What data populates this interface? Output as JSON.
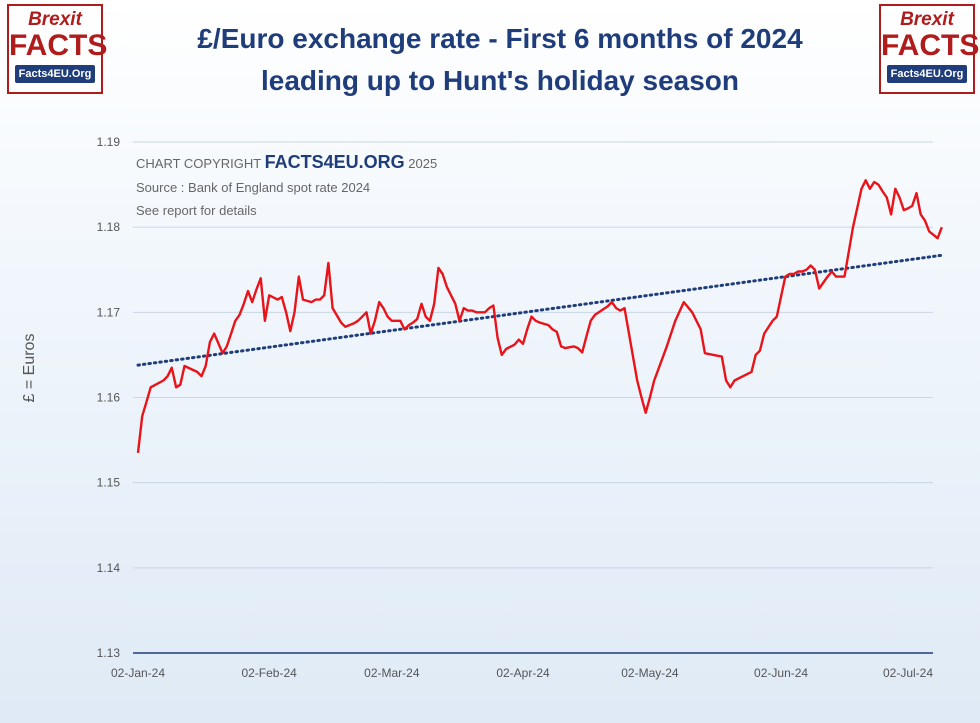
{
  "logos": {
    "line1": "Brexit",
    "line2": "FACTS",
    "line3": "Facts4EU.Org"
  },
  "title_line1": "£/Euro exchange rate - First 6 months of 2024",
  "title_line2": "leading up to Hunt's holiday season",
  "notes": {
    "copyright_prefix": "CHART COPYRIGHT",
    "copyright_org": "FACTS4EU.ORG",
    "copyright_year": "2025",
    "source": "Source : Bank of England spot rate 2024",
    "details": "See report for details"
  },
  "colors": {
    "title": "#1f3d7a",
    "series": "#e8141a",
    "trend": "#1f3d7a",
    "logo": "#b01c1c"
  },
  "chart_data": {
    "type": "line",
    "ylabel": "£ = Euros",
    "ylim": [
      1.13,
      1.19
    ],
    "yticks": [
      "1.13",
      "1.14",
      "1.15",
      "1.16",
      "1.17",
      "1.18",
      "1.19"
    ],
    "xticks": [
      "02-Jan-24",
      "02-Feb-24",
      "02-Mar-24",
      "02-Apr-24",
      "02-May-24",
      "02-Jun-24",
      "02-Jul-24"
    ],
    "xlim": [
      "2024-01-02",
      "2024-07-02"
    ],
    "grid": true,
    "series": [
      {
        "style": "solid",
        "points": [
          [
            "2024-01-02",
            1.1535
          ],
          [
            "2024-01-03",
            1.1578
          ],
          [
            "2024-01-04",
            1.1595
          ],
          [
            "2024-01-05",
            1.1612
          ],
          [
            "2024-01-08",
            1.162
          ],
          [
            "2024-01-09",
            1.1625
          ],
          [
            "2024-01-10",
            1.1635
          ],
          [
            "2024-01-11",
            1.1612
          ],
          [
            "2024-01-12",
            1.1615
          ],
          [
            "2024-01-13",
            1.1637
          ],
          [
            "2024-01-16",
            1.163
          ],
          [
            "2024-01-17",
            1.1625
          ],
          [
            "2024-01-18",
            1.1637
          ],
          [
            "2024-01-19",
            1.1665
          ],
          [
            "2024-01-20",
            1.1675
          ],
          [
            "2024-01-22",
            1.1652
          ],
          [
            "2024-01-23",
            1.166
          ],
          [
            "2024-01-24",
            1.1675
          ],
          [
            "2024-01-25",
            1.169
          ],
          [
            "2024-01-26",
            1.1697
          ],
          [
            "2024-01-27",
            1.171
          ],
          [
            "2024-01-28",
            1.1725
          ],
          [
            "2024-01-29",
            1.1712
          ],
          [
            "2024-01-30",
            1.1727
          ],
          [
            "2024-01-31",
            1.174
          ],
          [
            "2024-02-01",
            1.169
          ],
          [
            "2024-02-02",
            1.172
          ],
          [
            "2024-02-04",
            1.1715
          ],
          [
            "2024-02-05",
            1.1718
          ],
          [
            "2024-02-06",
            1.17
          ],
          [
            "2024-02-07",
            1.1678
          ],
          [
            "2024-02-08",
            1.17
          ],
          [
            "2024-02-09",
            1.1742
          ],
          [
            "2024-02-10",
            1.1715
          ],
          [
            "2024-02-12",
            1.1712
          ],
          [
            "2024-02-13",
            1.1715
          ],
          [
            "2024-02-14",
            1.1715
          ],
          [
            "2024-02-15",
            1.172
          ],
          [
            "2024-02-16",
            1.1758
          ],
          [
            "2024-02-17",
            1.1705
          ],
          [
            "2024-02-19",
            1.1688
          ],
          [
            "2024-02-20",
            1.1683
          ],
          [
            "2024-02-22",
            1.1687
          ],
          [
            "2024-02-23",
            1.169
          ],
          [
            "2024-02-25",
            1.17
          ],
          [
            "2024-02-26",
            1.1675
          ],
          [
            "2024-02-27",
            1.169
          ],
          [
            "2024-02-28",
            1.1712
          ],
          [
            "2024-02-29",
            1.1705
          ],
          [
            "2024-03-01",
            1.1695
          ],
          [
            "2024-03-02",
            1.169
          ],
          [
            "2024-03-04",
            1.169
          ],
          [
            "2024-03-05",
            1.168
          ],
          [
            "2024-03-06",
            1.1685
          ],
          [
            "2024-03-07",
            1.1688
          ],
          [
            "2024-03-08",
            1.1692
          ],
          [
            "2024-03-09",
            1.171
          ],
          [
            "2024-03-10",
            1.1695
          ],
          [
            "2024-03-11",
            1.169
          ],
          [
            "2024-03-12",
            1.171
          ],
          [
            "2024-03-13",
            1.1752
          ],
          [
            "2024-03-14",
            1.1745
          ],
          [
            "2024-03-15",
            1.173
          ],
          [
            "2024-03-17",
            1.171
          ],
          [
            "2024-03-18",
            1.169
          ],
          [
            "2024-03-19",
            1.1705
          ],
          [
            "2024-03-20",
            1.1702
          ],
          [
            "2024-03-21",
            1.1702
          ],
          [
            "2024-03-22",
            1.17
          ],
          [
            "2024-03-24",
            1.17
          ],
          [
            "2024-03-25",
            1.1705
          ],
          [
            "2024-03-26",
            1.1708
          ],
          [
            "2024-03-27",
            1.167
          ],
          [
            "2024-03-28",
            1.165
          ],
          [
            "2024-03-29",
            1.1657
          ],
          [
            "2024-03-31",
            1.1662
          ],
          [
            "2024-04-01",
            1.1668
          ],
          [
            "2024-04-02",
            1.1663
          ],
          [
            "2024-04-03",
            1.168
          ],
          [
            "2024-04-04",
            1.1695
          ],
          [
            "2024-04-05",
            1.169
          ],
          [
            "2024-04-06",
            1.1688
          ],
          [
            "2024-04-08",
            1.1685
          ],
          [
            "2024-04-09",
            1.168
          ],
          [
            "2024-04-10",
            1.1677
          ],
          [
            "2024-04-11",
            1.166
          ],
          [
            "2024-04-12",
            1.1658
          ],
          [
            "2024-04-14",
            1.166
          ],
          [
            "2024-04-15",
            1.1658
          ],
          [
            "2024-04-16",
            1.1653
          ],
          [
            "2024-04-17",
            1.1672
          ],
          [
            "2024-04-18",
            1.169
          ],
          [
            "2024-04-19",
            1.1697
          ],
          [
            "2024-04-22",
            1.1707
          ],
          [
            "2024-04-23",
            1.1712
          ],
          [
            "2024-04-24",
            1.1705
          ],
          [
            "2024-04-25",
            1.1702
          ],
          [
            "2024-04-26",
            1.1705
          ],
          [
            "2024-04-29",
            1.162
          ],
          [
            "2024-04-30",
            1.16
          ],
          [
            "2024-05-01",
            1.1582
          ],
          [
            "2024-05-02",
            1.16
          ],
          [
            "2024-05-03",
            1.162
          ],
          [
            "2024-05-06",
            1.166
          ],
          [
            "2024-05-08",
            1.169
          ],
          [
            "2024-05-10",
            1.1712
          ],
          [
            "2024-05-12",
            1.17
          ],
          [
            "2024-05-14",
            1.168
          ],
          [
            "2024-05-15",
            1.1652
          ],
          [
            "2024-05-17",
            1.165
          ],
          [
            "2024-05-19",
            1.1648
          ],
          [
            "2024-05-20",
            1.162
          ],
          [
            "2024-05-21",
            1.1612
          ],
          [
            "2024-05-22",
            1.162
          ],
          [
            "2024-05-24",
            1.1625
          ],
          [
            "2024-05-26",
            1.163
          ],
          [
            "2024-05-27",
            1.165
          ],
          [
            "2024-05-28",
            1.1655
          ],
          [
            "2024-05-29",
            1.1675
          ],
          [
            "2024-05-31",
            1.169
          ],
          [
            "2024-06-01",
            1.1695
          ],
          [
            "2024-06-03",
            1.1742
          ],
          [
            "2024-06-04",
            1.1745
          ],
          [
            "2024-06-05",
            1.1745
          ],
          [
            "2024-06-06",
            1.1748
          ],
          [
            "2024-06-07",
            1.1748
          ],
          [
            "2024-06-08",
            1.175
          ],
          [
            "2024-06-09",
            1.1755
          ],
          [
            "2024-06-10",
            1.175
          ],
          [
            "2024-06-11",
            1.1728
          ],
          [
            "2024-06-12",
            1.1735
          ],
          [
            "2024-06-13",
            1.1742
          ],
          [
            "2024-06-14",
            1.1748
          ],
          [
            "2024-06-15",
            1.1742
          ],
          [
            "2024-06-17",
            1.1742
          ],
          [
            "2024-06-19",
            1.18
          ],
          [
            "2024-06-21",
            1.1845
          ],
          [
            "2024-06-22",
            1.1855
          ],
          [
            "2024-06-23",
            1.1845
          ],
          [
            "2024-06-24",
            1.1853
          ],
          [
            "2024-06-25",
            1.185
          ],
          [
            "2024-06-26",
            1.1842
          ],
          [
            "2024-06-27",
            1.1835
          ],
          [
            "2024-06-28",
            1.1815
          ],
          [
            "2024-06-29",
            1.1845
          ],
          [
            "2024-06-30",
            1.1835
          ],
          [
            "2024-07-01",
            1.182
          ],
          [
            "2024-07-02",
            1.1822
          ],
          [
            "2024-07-03",
            1.1825
          ],
          [
            "2024-07-04",
            1.184
          ],
          [
            "2024-07-05",
            1.1815
          ],
          [
            "2024-07-06",
            1.1808
          ],
          [
            "2024-07-07",
            1.1795
          ],
          [
            "2024-07-09",
            1.1787
          ],
          [
            "2024-07-10",
            1.18
          ]
        ]
      },
      {
        "style": "dotted trendline",
        "points": [
          [
            "2024-01-02",
            1.1638
          ],
          [
            "2024-07-10",
            1.1767
          ]
        ]
      }
    ]
  }
}
